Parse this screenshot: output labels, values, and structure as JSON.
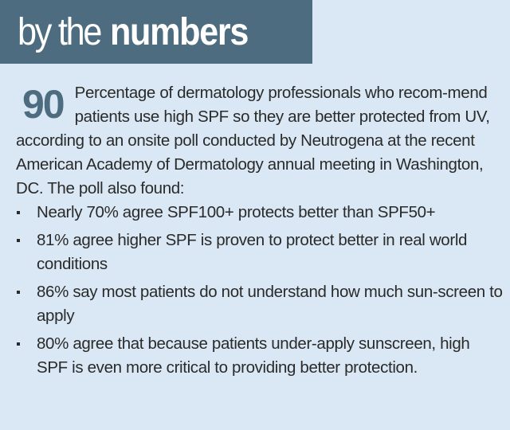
{
  "header": {
    "light_text": "by the",
    "bold_text": "numbers"
  },
  "stat": {
    "number": "90",
    "description": "Percentage of dermatology professionals who recom-mend patients use high SPF so they are better protected from UV, according to an onsite poll conducted by Neutrogena at the recent American Academy of Dermatology annual meeting in Washington, DC. The poll also found:"
  },
  "findings": [
    "Nearly 70% agree SPF100+ protects better than SPF50+",
    "81% agree higher SPF is proven to protect better in real world conditions",
    "86% say most patients do not understand how much sun-screen to apply",
    "80% agree that because patients under-apply sunscreen, high SPF is even more critical to providing better protection."
  ],
  "colors": {
    "background": "#d9e8f4",
    "header_bar": "#4d6c7f",
    "accent_number": "#4d6c7f",
    "text": "#2a2a2a"
  }
}
